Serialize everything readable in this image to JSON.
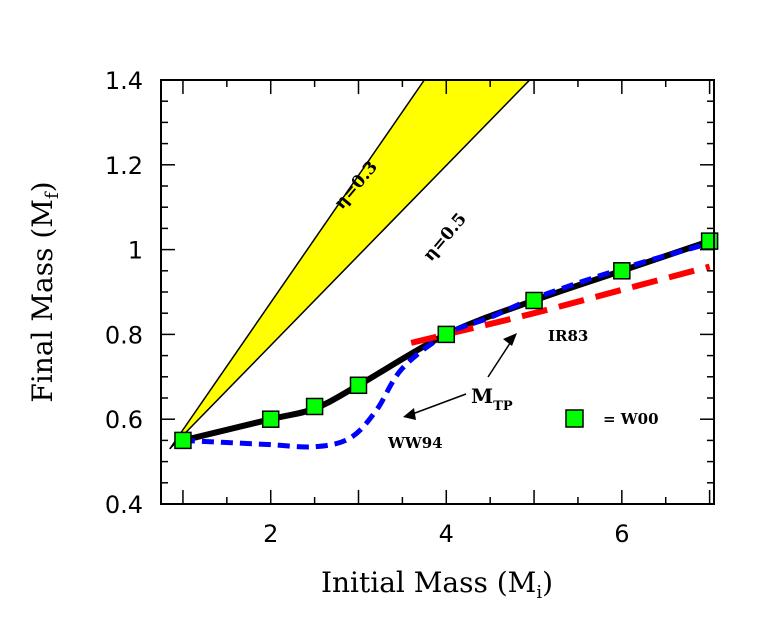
{
  "chart_data": {
    "type": "line",
    "title": "",
    "xlabel": "Initial Mass (M",
    "xlabel_sub": "i",
    "xlabel_end": ")",
    "ylabel": "Final Mass (M",
    "ylabel_sub": "f",
    "ylabel_end": ")",
    "xlim": [
      0.75,
      7.05
    ],
    "ylim": [
      0.4,
      1.4
    ],
    "xticks": [
      2,
      4,
      6
    ],
    "yticks": [
      0.4,
      0.6,
      0.8,
      1,
      1.2,
      1.4
    ],
    "ytick_labels": [
      "0.4",
      "0.6",
      "0.8",
      "1",
      "1.2",
      "1.4"
    ],
    "band": {
      "upper_label": "η=0.3",
      "lower_label": "η=0.5",
      "color": "#ffff00",
      "upper_line": [
        [
          0.85,
          0.53
        ],
        [
          3.75,
          1.4
        ]
      ],
      "lower_line": [
        [
          0.85,
          0.53
        ],
        [
          4.95,
          1.4
        ]
      ]
    },
    "series": [
      {
        "style": "solid",
        "color": "#000000",
        "x": [
          1,
          2,
          2.5,
          3,
          4,
          5,
          6,
          7
        ],
        "y": [
          0.55,
          0.6,
          0.625,
          0.68,
          0.8,
          0.88,
          0.95,
          1.02
        ]
      },
      {
        "name": "WW94",
        "style": "dashed",
        "color": "#0000ff",
        "x": [
          1,
          1.5,
          2,
          2.5,
          2.9,
          3.2,
          3.5,
          4,
          4.5,
          5,
          6,
          7
        ],
        "y": [
          0.55,
          0.545,
          0.54,
          0.535,
          0.555,
          0.62,
          0.72,
          0.8,
          0.84,
          0.885,
          0.955,
          1.015
        ]
      },
      {
        "name": "IR83",
        "style": "dashed",
        "color": "#ff0000",
        "x": [
          3.6,
          4,
          5,
          6,
          7
        ],
        "y": [
          0.78,
          0.8,
          0.85,
          0.905,
          0.96
        ]
      },
      {
        "name": "W00",
        "style": "markers",
        "color": "#00ff00",
        "x": [
          1,
          2,
          2.5,
          3,
          4,
          5,
          6,
          7
        ],
        "y": [
          0.55,
          0.6,
          0.63,
          0.68,
          0.8,
          0.88,
          0.95,
          1.02
        ]
      }
    ],
    "annotations": {
      "ir83": "IR83",
      "ww94": "WW94",
      "mtp_main": "M",
      "mtp_sub": "TP",
      "legend_text": "= W00"
    }
  }
}
